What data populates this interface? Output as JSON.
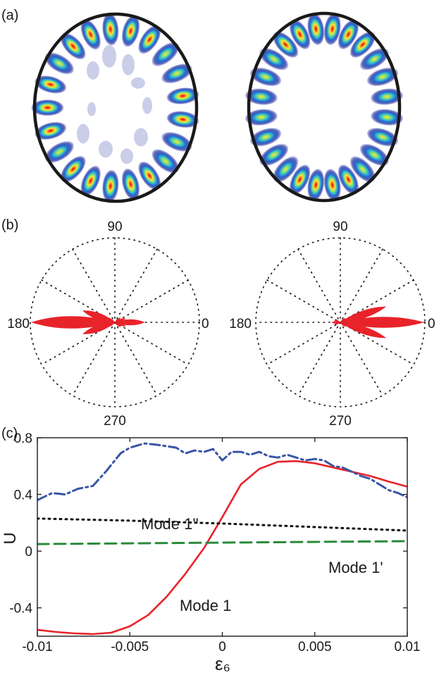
{
  "panels": {
    "a": {
      "label": "(a)",
      "left_mode_count": 21,
      "right_mode_count": 24
    },
    "b": {
      "label": "(b)",
      "angle_labels": [
        "90",
        "180",
        "0",
        "270"
      ]
    },
    "c": {
      "label": "(c)"
    }
  },
  "colors": {
    "mode1": "#e8232a",
    "mode1_prime": "#2a8a3a",
    "mode1_double_prime": "#111111",
    "dashdot": "#3a55a5",
    "lobe": "#e8232a"
  },
  "chart_data": [
    {
      "type": "line",
      "panel": "c",
      "xlabel": "ε₆",
      "ylabel": "U",
      "xlim": [
        -0.01,
        0.01
      ],
      "ylim": [
        -0.6,
        0.8
      ],
      "x_ticks": [
        "-0.01",
        "-0.005",
        "0",
        "0.005",
        "0.01"
      ],
      "y_ticks": [
        "0.8",
        "0.4",
        "0",
        "-0.4"
      ],
      "series": [
        {
          "name": "Mode 1",
          "style": "solid",
          "x": [
            -0.01,
            -0.009,
            -0.008,
            -0.007,
            -0.006,
            -0.005,
            -0.004,
            -0.003,
            -0.002,
            -0.001,
            0.0,
            0.001,
            0.002,
            0.003,
            0.004,
            0.005,
            0.006,
            0.007,
            0.008,
            0.009,
            0.01
          ],
          "y": [
            -0.555,
            -0.57,
            -0.58,
            -0.585,
            -0.575,
            -0.53,
            -0.45,
            -0.32,
            -0.16,
            0.02,
            0.24,
            0.47,
            0.58,
            0.63,
            0.635,
            0.62,
            0.59,
            0.56,
            0.53,
            0.49,
            0.455
          ]
        },
        {
          "name": "Mode 1'",
          "style": "dashed",
          "x": [
            -0.01,
            0.01
          ],
          "y": [
            0.05,
            0.07
          ]
        },
        {
          "name": "Mode 1''",
          "style": "dotted",
          "x": [
            -0.01,
            -0.005,
            0.0,
            0.005,
            0.01
          ],
          "y": [
            0.23,
            0.215,
            0.195,
            0.17,
            0.145
          ]
        },
        {
          "style": "dashdot",
          "x": [
            -0.01,
            -0.0092,
            -0.0085,
            -0.0078,
            -0.007,
            -0.0063,
            -0.0055,
            -0.005,
            -0.0042,
            -0.0035,
            -0.003,
            -0.0025,
            -0.002,
            -0.0015,
            -0.001,
            -0.0005,
            0.0,
            0.0005,
            0.001,
            0.0015,
            0.002,
            0.0025,
            0.003,
            0.0035,
            0.004,
            0.0045,
            0.005,
            0.0055,
            0.006,
            0.0065,
            0.007,
            0.0075,
            0.008,
            0.0085,
            0.009,
            0.0095,
            0.01
          ],
          "y": [
            0.36,
            0.41,
            0.4,
            0.44,
            0.46,
            0.56,
            0.69,
            0.73,
            0.76,
            0.75,
            0.74,
            0.73,
            0.69,
            0.71,
            0.7,
            0.72,
            0.64,
            0.7,
            0.7,
            0.68,
            0.7,
            0.67,
            0.66,
            0.68,
            0.66,
            0.64,
            0.65,
            0.64,
            0.6,
            0.59,
            0.56,
            0.53,
            0.51,
            0.47,
            0.43,
            0.41,
            0.38
          ]
        }
      ],
      "annotations": [
        "Mode 1''",
        "Mode 1'",
        "Mode 1"
      ]
    }
  ]
}
